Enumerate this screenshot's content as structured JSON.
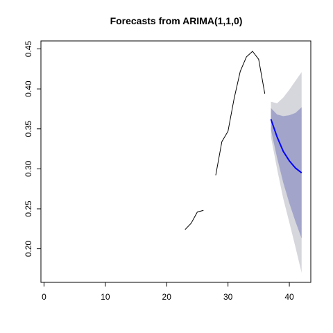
{
  "chart_data": {
    "type": "line",
    "title": "Forecasts from ARIMA(1,1,0)",
    "xlabel": "",
    "ylabel": "",
    "xlim": [
      -0.5,
      43.5
    ],
    "ylim": [
      0.158,
      0.46
    ],
    "x_ticks": [
      0,
      10,
      20,
      30,
      40
    ],
    "x_tick_labels": [
      "0",
      "10",
      "20",
      "30",
      "40"
    ],
    "y_ticks": [
      0.2,
      0.25,
      0.3,
      0.35,
      0.4,
      0.45
    ],
    "y_tick_labels": [
      "0.20",
      "0.25",
      "0.30",
      "0.35",
      "0.40",
      "0.45"
    ],
    "grid": false,
    "series": [
      {
        "role": "observed",
        "color": "#000000",
        "segments": [
          [
            [
              23,
              0.224
            ],
            [
              24,
              0.232
            ],
            [
              25,
              0.246
            ],
            [
              26,
              0.248
            ]
          ],
          [
            [
              28,
              0.292
            ],
            [
              29,
              0.334
            ],
            [
              30,
              0.347
            ],
            [
              31,
              0.388
            ],
            [
              32,
              0.422
            ],
            [
              33,
              0.44
            ],
            [
              34,
              0.447
            ],
            [
              35,
              0.437
            ],
            [
              36,
              0.394
            ]
          ]
        ]
      },
      {
        "role": "forecast",
        "color": "#0000ff",
        "points": [
          [
            37,
            0.362
          ],
          [
            38,
            0.34
          ],
          [
            39,
            0.322
          ],
          [
            40,
            0.31
          ],
          [
            41,
            0.301
          ],
          [
            42,
            0.295
          ]
        ]
      }
    ],
    "bands": [
      {
        "level": 95,
        "color": "#d6d6dd",
        "x": [
          37,
          38,
          39,
          40,
          41,
          42
        ],
        "lower": [
          0.34,
          0.3,
          0.263,
          0.233,
          0.202,
          0.17
        ],
        "upper": [
          0.384,
          0.382,
          0.389,
          0.399,
          0.41,
          0.421
        ]
      },
      {
        "level": 80,
        "color": "#a2a5c9",
        "x": [
          37,
          38,
          39,
          40,
          41,
          42
        ],
        "lower": [
          0.349,
          0.314,
          0.283,
          0.257,
          0.234,
          0.213
        ],
        "upper": [
          0.376,
          0.368,
          0.366,
          0.367,
          0.37,
          0.377
        ]
      }
    ]
  }
}
